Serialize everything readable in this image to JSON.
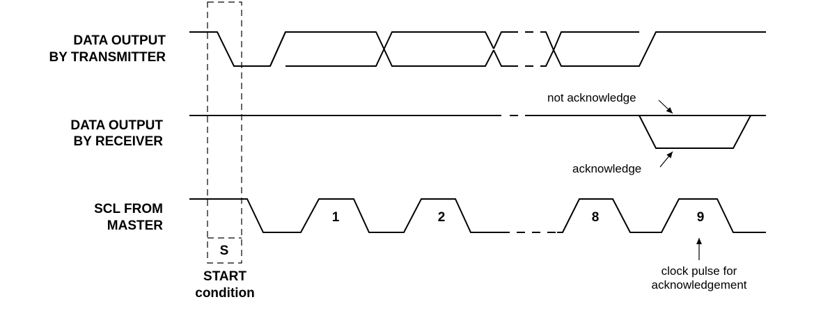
{
  "signals": {
    "data_transmitter": [
      "DATA OUTPUT",
      "BY TRANSMITTER"
    ],
    "data_receiver": [
      "DATA OUTPUT",
      "BY RECEIVER"
    ],
    "scl_master": [
      "SCL FROM",
      "MASTER"
    ]
  },
  "clock_pulses": [
    "1",
    "2",
    "8",
    "9"
  ],
  "start": {
    "box_label": "S",
    "caption": [
      "START",
      "condition"
    ]
  },
  "annotations": {
    "not_acknowledge": "not acknowledge",
    "acknowledge": "acknowledge",
    "clock_pulse_ack": [
      "clock pulse for",
      "acknowledgement"
    ]
  }
}
